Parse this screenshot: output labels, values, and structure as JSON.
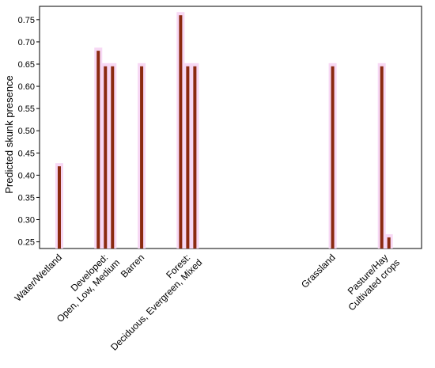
{
  "chart_data": {
    "type": "bar",
    "ylabel": "Predicted skunk presence",
    "xlabel": "",
    "ylim": [
      0.235,
      0.78
    ],
    "yticks": [
      0.25,
      0.3,
      0.35,
      0.4,
      0.45,
      0.5,
      0.55,
      0.6,
      0.65,
      0.7,
      0.75
    ],
    "grid": false,
    "bar_color": "#8b2a10",
    "halo_color": "#f7d8f4",
    "categories": [
      {
        "label_lines": [
          "Water/Wetland"
        ],
        "x": 0.3,
        "values": [
          0.42
        ]
      },
      {
        "label_lines": [
          "Developed:",
          "Open, Low, Medium"
        ],
        "x": 1.0,
        "values": [
          0.68,
          0.645,
          0.645
        ]
      },
      {
        "label_lines": [
          "Barren"
        ],
        "x": 1.55,
        "values": [
          0.645
        ]
      },
      {
        "label_lines": [
          "Forest:",
          "Deciduous, Evergreen, Mixed"
        ],
        "x": 2.25,
        "values": [
          0.76,
          0.645,
          0.645
        ]
      },
      {
        "label_lines": [
          "Grassland"
        ],
        "x": 4.45,
        "values": [
          0.645
        ]
      },
      {
        "label_lines": [
          "Pasture/Hay",
          "Cultivated crops"
        ],
        "x": 5.25,
        "values": [
          0.645,
          0.26
        ]
      }
    ]
  }
}
